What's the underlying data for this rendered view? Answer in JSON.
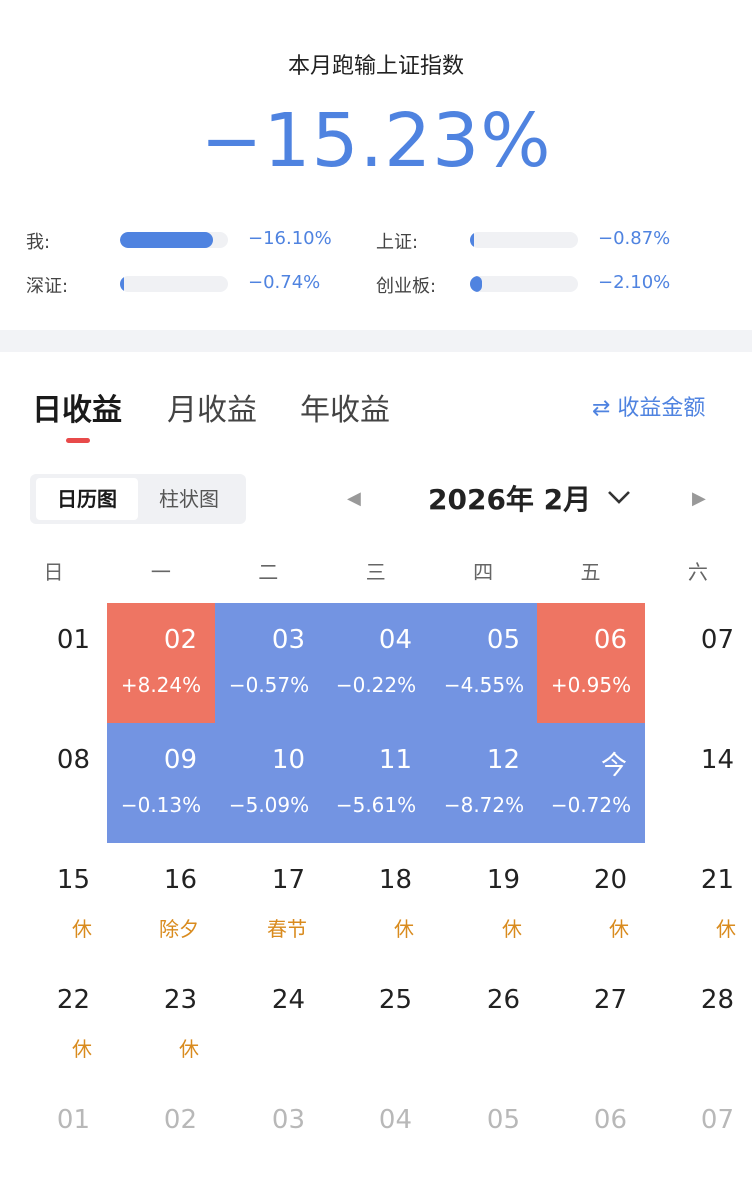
{
  "summary": {
    "headline": "本月跑输上证指数",
    "big_value": "−15.23%",
    "comparisons": [
      {
        "label": "我:",
        "value": "−16.10%",
        "fill": 0.86
      },
      {
        "label": "上证:",
        "value": "−0.87%",
        "fill": 0.04
      },
      {
        "label": "深证:",
        "value": "−0.74%",
        "fill": 0.03
      },
      {
        "label": "创业板:",
        "value": "−2.10%",
        "fill": 0.11
      }
    ]
  },
  "tabs": [
    "日收益",
    "月收益",
    "年收益"
  ],
  "active_tab": "日收益",
  "switch_link": "⇄ 收益金额",
  "view_toggle": [
    "日历图",
    "柱状图"
  ],
  "active_view": "日历图",
  "month_title": "2026年 2月",
  "weekdays": [
    "日",
    "一",
    "二",
    "三",
    "四",
    "五",
    "六"
  ],
  "colors": {
    "accent": "#4f83e0",
    "gain": "#ee7563",
    "loss": "#7394e2",
    "holiday": "#d98b1e"
  },
  "calendar": [
    [
      {
        "day": "01"
      },
      {
        "day": "02",
        "pct": "+8.24%",
        "trend": "up"
      },
      {
        "day": "03",
        "pct": "−0.57%",
        "trend": "down"
      },
      {
        "day": "04",
        "pct": "−0.22%",
        "trend": "down"
      },
      {
        "day": "05",
        "pct": "−4.55%",
        "trend": "down"
      },
      {
        "day": "06",
        "pct": "+0.95%",
        "trend": "up"
      },
      {
        "day": "07"
      }
    ],
    [
      {
        "day": "08"
      },
      {
        "day": "09",
        "pct": "−0.13%",
        "trend": "down"
      },
      {
        "day": "10",
        "pct": "−5.09%",
        "trend": "down"
      },
      {
        "day": "11",
        "pct": "−5.61%",
        "trend": "down"
      },
      {
        "day": "12",
        "pct": "−8.72%",
        "trend": "down"
      },
      {
        "day": "今",
        "pct": "−0.72%",
        "trend": "down"
      },
      {
        "day": "14"
      }
    ],
    [
      {
        "day": "15",
        "note": "休"
      },
      {
        "day": "16",
        "note": "除夕"
      },
      {
        "day": "17",
        "note": "春节"
      },
      {
        "day": "18",
        "note": "休"
      },
      {
        "day": "19",
        "note": "休"
      },
      {
        "day": "20",
        "note": "休"
      },
      {
        "day": "21",
        "note": "休"
      }
    ],
    [
      {
        "day": "22",
        "note": "休"
      },
      {
        "day": "23",
        "note": "休"
      },
      {
        "day": "24"
      },
      {
        "day": "25"
      },
      {
        "day": "26"
      },
      {
        "day": "27"
      },
      {
        "day": "28"
      }
    ],
    [
      {
        "day": "01",
        "other": true
      },
      {
        "day": "02",
        "other": true
      },
      {
        "day": "03",
        "other": true
      },
      {
        "day": "04",
        "other": true
      },
      {
        "day": "05",
        "other": true
      },
      {
        "day": "06",
        "other": true
      },
      {
        "day": "07",
        "other": true
      }
    ]
  ]
}
